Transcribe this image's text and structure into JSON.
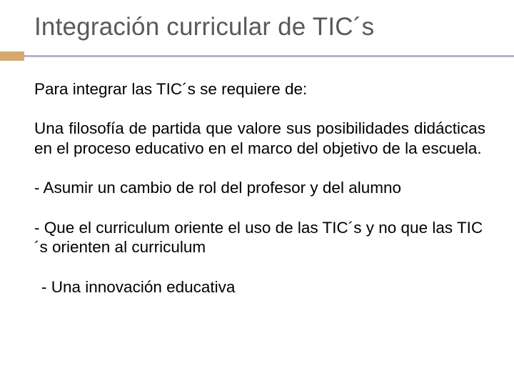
{
  "slide": {
    "title": "Integración curricular de TIC´s",
    "intro": "Para integrar las TIC´s se requiere de:",
    "paragraph1": "Una filosofía de partida que valore sus posibilidades didácticas en el proceso educativo en el marco del objetivo de la escuela.",
    "bullet1": "- Asumir un cambio de rol del profesor y del alumno",
    "bullet2": "- Que el curriculum oriente el uso de las TIC´s y no que las TIC´s orienten al curriculum",
    "bullet3": "- Una innovación educativa"
  },
  "style": {
    "title_color": "#595959",
    "title_fontsize": 35,
    "body_color": "#000000",
    "body_fontsize": 22.5,
    "accent_color": "#d6a96f",
    "divider_color": "#b9b2c9",
    "background_color": "#ffffff"
  }
}
